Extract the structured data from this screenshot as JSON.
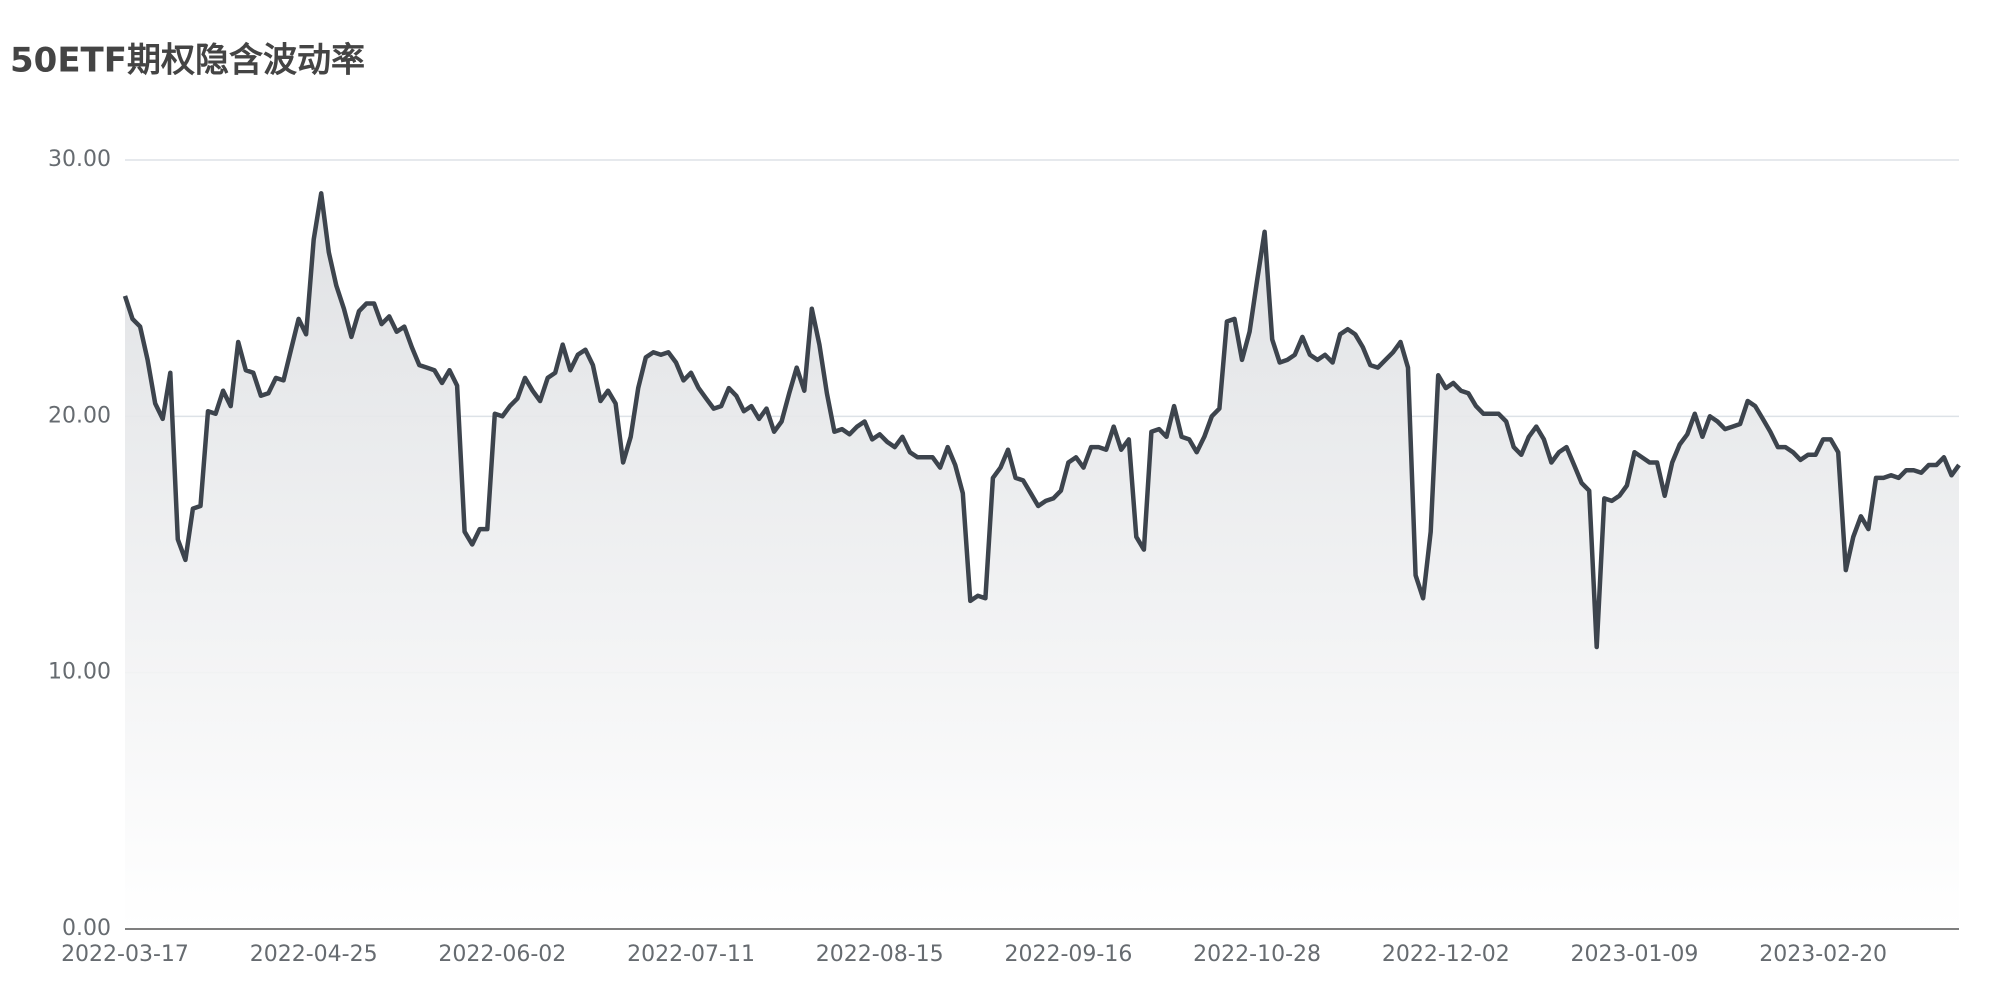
{
  "chart_data": {
    "type": "line",
    "title": "50ETF期权隐含波动率",
    "categories": [
      "2022-03-17",
      null,
      null,
      null,
      null,
      null,
      null,
      null,
      null,
      null,
      null,
      null,
      null,
      null,
      null,
      null,
      null,
      null,
      null,
      null,
      null,
      null,
      null,
      null,
      null,
      "2022-04-25",
      null,
      null,
      null,
      null,
      null,
      null,
      null,
      null,
      null,
      null,
      null,
      null,
      null,
      null,
      null,
      null,
      null,
      null,
      null,
      null,
      null,
      null,
      null,
      null,
      "2022-06-02",
      null,
      null,
      null,
      null,
      null,
      null,
      null,
      null,
      null,
      null,
      null,
      null,
      null,
      null,
      null,
      null,
      null,
      null,
      null,
      null,
      null,
      null,
      null,
      null,
      "2022-07-11",
      null,
      null,
      null,
      null,
      null,
      null,
      null,
      null,
      null,
      null,
      null,
      null,
      null,
      null,
      null,
      null,
      null,
      null,
      null,
      null,
      null,
      null,
      null,
      null,
      "2022-08-15",
      null,
      null,
      null,
      null,
      null,
      null,
      null,
      null,
      null,
      null,
      null,
      null,
      null,
      null,
      null,
      null,
      null,
      null,
      null,
      null,
      null,
      null,
      null,
      null,
      "2022-09-16",
      null,
      null,
      null,
      null,
      null,
      null,
      null,
      null,
      null,
      null,
      null,
      null,
      null,
      null,
      null,
      null,
      null,
      null,
      null,
      null,
      null,
      null,
      null,
      null,
      "2022-10-28",
      null,
      null,
      null,
      null,
      null,
      null,
      null,
      null,
      null,
      null,
      null,
      null,
      null,
      null,
      null,
      null,
      null,
      null,
      null,
      null,
      null,
      null,
      null,
      null,
      "2022-12-02",
      null,
      null,
      null,
      null,
      null,
      null,
      null,
      null,
      null,
      null,
      null,
      null,
      null,
      null,
      null,
      null,
      null,
      null,
      null,
      null,
      null,
      null,
      null,
      null,
      "2023-01-09",
      null,
      null,
      null,
      null,
      null,
      null,
      null,
      null,
      null,
      null,
      null,
      null,
      null,
      null,
      null,
      null,
      null,
      null,
      null,
      null,
      null,
      null,
      null,
      null,
      "2023-02-20",
      null,
      null,
      null,
      null,
      null,
      null,
      null,
      null,
      null,
      null,
      null,
      null,
      null,
      null,
      null,
      null,
      null,
      null
    ],
    "values": [
      24.7,
      23.8,
      23.5,
      22.2,
      20.5,
      19.9,
      21.7,
      15.2,
      14.4,
      16.4,
      16.5,
      20.2,
      20.1,
      21.0,
      20.4,
      22.9,
      21.8,
      21.7,
      20.8,
      20.9,
      21.5,
      21.4,
      22.6,
      23.8,
      23.2,
      26.9,
      28.7,
      26.4,
      25.1,
      24.2,
      23.1,
      24.1,
      24.4,
      24.4,
      23.6,
      23.9,
      23.3,
      23.5,
      22.7,
      22.0,
      21.9,
      21.8,
      21.3,
      21.8,
      21.2,
      15.5,
      15.0,
      15.6,
      15.6,
      20.1,
      20.0,
      20.4,
      20.7,
      21.5,
      21.0,
      20.6,
      21.5,
      21.7,
      22.8,
      21.8,
      22.4,
      22.6,
      22.0,
      20.6,
      21.0,
      20.5,
      18.2,
      19.2,
      21.1,
      22.3,
      22.5,
      22.4,
      22.5,
      22.1,
      21.4,
      21.7,
      21.1,
      20.7,
      20.3,
      20.4,
      21.1,
      20.8,
      20.2,
      20.4,
      19.9,
      20.3,
      19.4,
      19.8,
      20.9,
      21.9,
      21.0,
      24.2,
      22.8,
      20.9,
      19.4,
      19.5,
      19.3,
      19.6,
      19.8,
      19.1,
      19.3,
      19.0,
      18.8,
      19.2,
      18.6,
      18.4,
      18.4,
      18.4,
      18.0,
      18.8,
      18.1,
      17.0,
      12.8,
      13.0,
      12.9,
      17.6,
      18.0,
      18.7,
      17.6,
      17.5,
      17.0,
      16.5,
      16.7,
      16.8,
      17.1,
      18.2,
      18.4,
      18.0,
      18.8,
      18.8,
      18.7,
      19.6,
      18.7,
      19.1,
      15.3,
      14.8,
      19.4,
      19.5,
      19.2,
      20.4,
      19.2,
      19.1,
      18.6,
      19.2,
      20.0,
      20.3,
      23.7,
      23.8,
      22.2,
      23.3,
      25.3,
      27.2,
      23.0,
      22.1,
      22.2,
      22.4,
      23.1,
      22.4,
      22.2,
      22.4,
      22.1,
      23.2,
      23.4,
      23.2,
      22.7,
      22.0,
      21.9,
      22.2,
      22.5,
      22.9,
      21.9,
      13.8,
      12.9,
      15.5,
      21.6,
      21.1,
      21.3,
      21.0,
      20.9,
      20.4,
      20.1,
      20.1,
      20.1,
      19.8,
      18.8,
      18.5,
      19.2,
      19.6,
      19.1,
      18.2,
      18.6,
      18.8,
      18.1,
      17.4,
      17.1,
      11.0,
      16.8,
      16.7,
      16.9,
      17.3,
      18.6,
      18.4,
      18.2,
      18.2,
      16.9,
      18.2,
      18.9,
      19.3,
      20.1,
      19.2,
      20.0,
      19.8,
      19.5,
      19.6,
      19.7,
      20.6,
      20.4,
      19.9,
      19.4,
      18.8,
      18.8,
      18.6,
      18.3,
      18.5,
      18.5,
      19.1,
      19.1,
      18.6,
      14.0,
      15.3,
      16.1,
      15.6,
      17.6,
      17.6,
      17.7,
      17.6,
      17.9,
      17.9,
      17.8,
      18.1,
      18.1,
      18.4,
      17.7,
      18.1
    ],
    "color": "#3d444d",
    "ylim": [
      0,
      30
    ],
    "yticks": [
      {
        "value": 0,
        "label": "0.00"
      },
      {
        "value": 10,
        "label": "10.00"
      },
      {
        "value": 20,
        "label": "20.00"
      },
      {
        "value": 30,
        "label": "30.00"
      }
    ],
    "grid": true
  }
}
